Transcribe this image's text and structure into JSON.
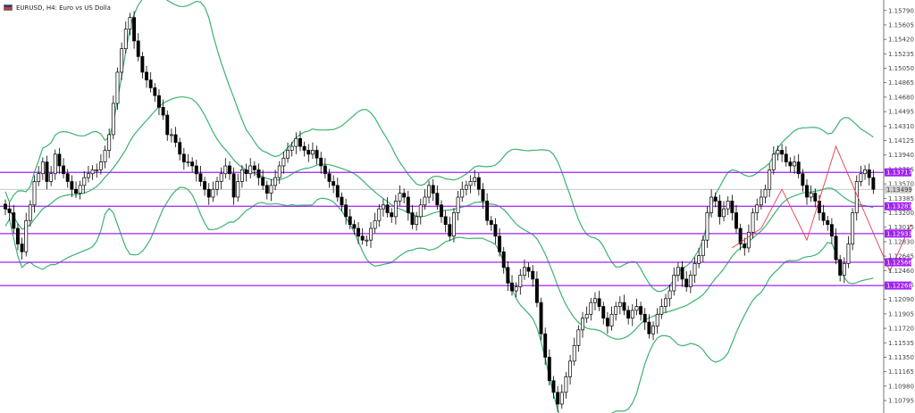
{
  "header": {
    "title": "EURUSD, H4:  Euro vs US Dolla",
    "flag_icon": "eu-us-flag-icon"
  },
  "colors": {
    "background": "#ffffff",
    "candle": "#000000",
    "bollinger": "#3cb371",
    "level_line": "#a020f0",
    "zigzag": "#e0404a",
    "axis_text": "#444444",
    "current_price_line": "#c0c0c0"
  },
  "chart_data": {
    "type": "candlestick",
    "symbol": "EURUSD",
    "timeframe": "H4",
    "title": "EURUSD, H4:  Euro vs US Dolla",
    "xlabel": "",
    "ylabel": "",
    "ylim": [
      1.1067,
      1.1589
    ],
    "y_ticks": [
      "1.15790",
      "1.15605",
      "1.15420",
      "1.15235",
      "1.15050",
      "1.14865",
      "1.14680",
      "1.14495",
      "1.14310",
      "1.14125",
      "1.13940",
      "1.13755",
      "1.13570",
      "1.13385",
      "1.13200",
      "1.13015",
      "1.12830",
      "1.12645",
      "1.12460",
      "1.12275",
      "1.12090",
      "1.11905",
      "1.11720",
      "1.11535",
      "1.11350",
      "1.11165",
      "1.10980",
      "1.10795"
    ],
    "levels": [
      {
        "label": "1.13717",
        "value": 1.13717
      },
      {
        "label": "1.13283",
        "value": 1.13283
      },
      {
        "label": "1.12933",
        "value": 1.12933
      },
      {
        "label": "1.12566",
        "value": 1.12566
      },
      {
        "label": "1.12268",
        "value": 1.12268
      }
    ],
    "current_price": {
      "label": "1.13499",
      "value": 1.13499
    },
    "grid": false,
    "close_series": [
      1.1325,
      1.132,
      1.13,
      1.128,
      1.127,
      1.131,
      1.133,
      1.136,
      1.137,
      1.1385,
      1.136,
      1.137,
      1.1395,
      1.138,
      1.137,
      1.136,
      1.135,
      1.1345,
      1.1355,
      1.1365,
      1.137,
      1.1375,
      1.1375,
      1.1385,
      1.14,
      1.142,
      1.146,
      1.15,
      1.153,
      1.1555,
      1.157,
      1.154,
      1.152,
      1.15,
      1.149,
      1.148,
      1.147,
      1.1455,
      1.1445,
      1.142,
      1.142,
      1.141,
      1.1395,
      1.1385,
      1.1385,
      1.138,
      1.137,
      1.136,
      1.135,
      1.134,
      1.135,
      1.136,
      1.137,
      1.138,
      1.137,
      1.134,
      1.136,
      1.1375,
      1.137,
      1.138,
      1.1375,
      1.1365,
      1.1355,
      1.1345,
      1.1355,
      1.1365,
      1.138,
      1.139,
      1.14,
      1.1405,
      1.1415,
      1.1405,
      1.14,
      1.1395,
      1.14,
      1.139,
      1.138,
      1.137,
      1.136,
      1.1355,
      1.134,
      1.133,
      1.1315,
      1.1305,
      1.13,
      1.129,
      1.1285,
      1.1285,
      1.13,
      1.131,
      1.1325,
      1.133,
      1.132,
      1.1315,
      1.1335,
      1.1345,
      1.134,
      1.132,
      1.1305,
      1.1315,
      1.133,
      1.134,
      1.1355,
      1.1345,
      1.133,
      1.1315,
      1.1305,
      1.129,
      1.132,
      1.134,
      1.135,
      1.1355,
      1.136,
      1.1365,
      1.135,
      1.1335,
      1.131,
      1.1305,
      1.129,
      1.127,
      1.125,
      1.123,
      1.122,
      1.1225,
      1.124,
      1.125,
      1.1245,
      1.1235,
      1.1205,
      1.1165,
      1.1135,
      1.1105,
      1.109,
      1.1075,
      1.109,
      1.111,
      1.113,
      1.115,
      1.117,
      1.1185,
      1.119,
      1.1205,
      1.121,
      1.12,
      1.1185,
      1.1175,
      1.119,
      1.12,
      1.1205,
      1.1195,
      1.1185,
      1.1195,
      1.12,
      1.119,
      1.118,
      1.1165,
      1.1175,
      1.119,
      1.12,
      1.121,
      1.122,
      1.124,
      1.125,
      1.1235,
      1.1225,
      1.124,
      1.1255,
      1.1265,
      1.1285,
      1.132,
      1.134,
      1.1335,
      1.1315,
      1.1325,
      1.1335,
      1.132,
      1.13,
      1.128,
      1.1275,
      1.1295,
      1.132,
      1.133,
      1.134,
      1.135,
      1.1375,
      1.1395,
      1.14,
      1.1395,
      1.1385,
      1.138,
      1.1385,
      1.137,
      1.1355,
      1.134,
      1.1345,
      1.1335,
      1.132,
      1.131,
      1.1305,
      1.129,
      1.126,
      1.124,
      1.1255,
      1.128,
      1.132,
      1.136,
      1.137,
      1.1375,
      1.1365,
      1.135
    ]
  }
}
